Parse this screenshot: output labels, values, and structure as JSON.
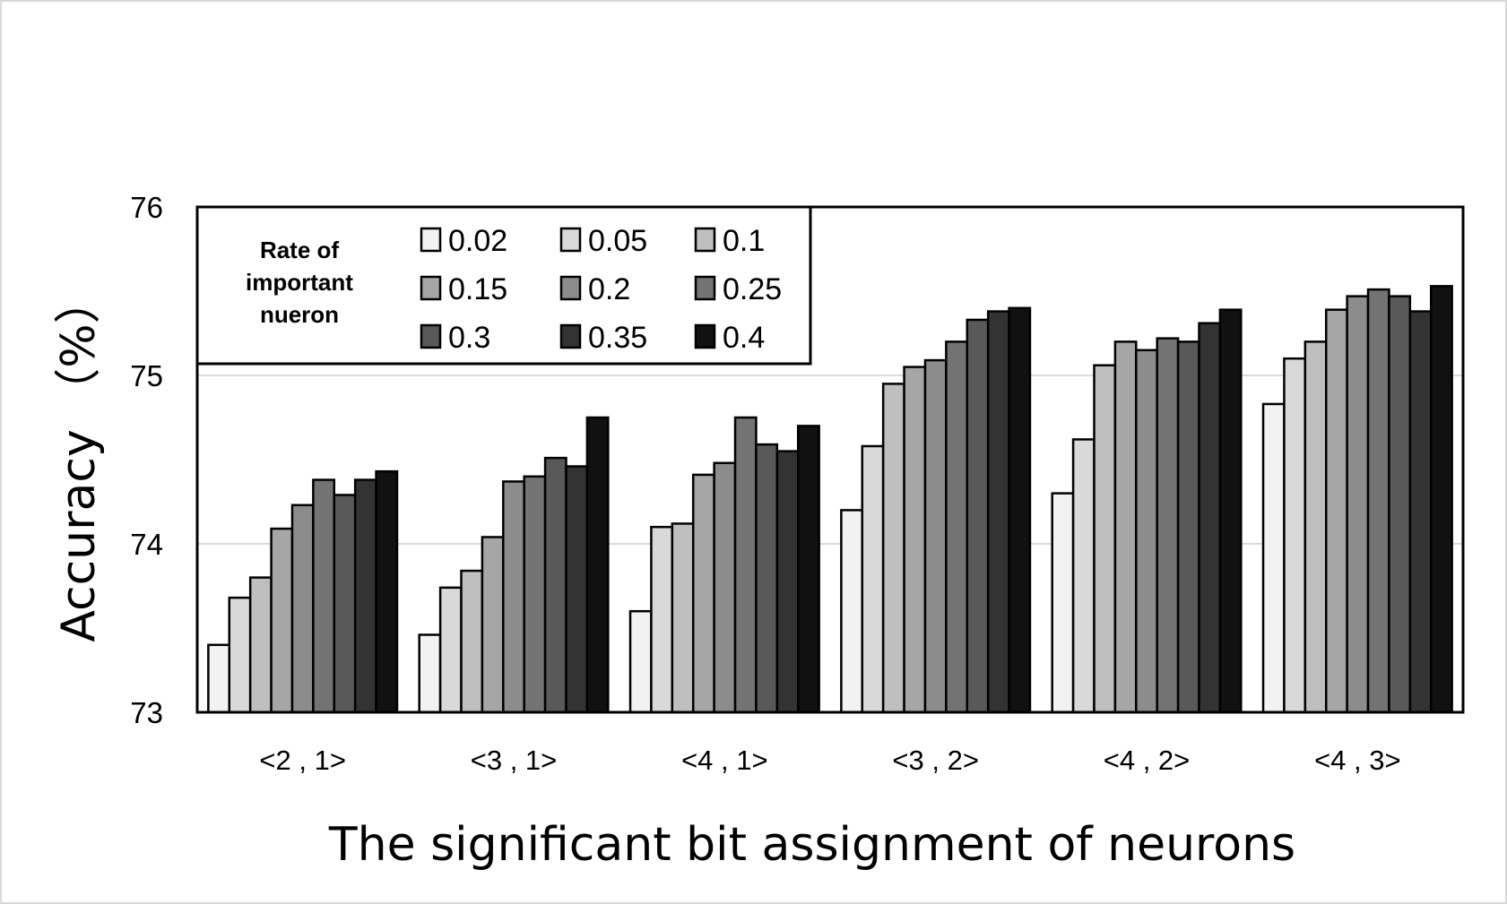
{
  "chart_data": {
    "type": "bar",
    "xlabel": "The significant bit  assignment of neurons",
    "ylabel": "Accuracy （%）",
    "ylim": [
      73,
      76
    ],
    "yticks": [
      "73",
      "74",
      "75",
      "76"
    ],
    "grid": true,
    "legend_position": "top-left",
    "legend_title_lines": [
      "Rate of",
      "important",
      "nueron"
    ],
    "categories": [
      "<2 , 1>",
      "<3 , 1>",
      "<4 , 1>",
      "<3 , 2>",
      "<4 , 2>",
      "<4 , 3>"
    ],
    "series": [
      {
        "name": "0.02",
        "color": "#f2f2f2",
        "values": [
          73.4,
          73.46,
          73.6,
          74.2,
          74.3,
          74.83
        ]
      },
      {
        "name": "0.05",
        "color": "#d9d9d9",
        "values": [
          73.68,
          73.74,
          74.1,
          74.58,
          74.62,
          75.1
        ]
      },
      {
        "name": "0.1",
        "color": "#bfbfbf",
        "values": [
          73.8,
          73.84,
          74.12,
          74.95,
          75.06,
          75.2
        ]
      },
      {
        "name": "0.15",
        "color": "#a6a6a6",
        "values": [
          74.09,
          74.04,
          74.41,
          75.05,
          75.2,
          75.39
        ]
      },
      {
        "name": "0.2",
        "color": "#8c8c8c",
        "values": [
          74.23,
          74.37,
          74.48,
          75.09,
          75.15,
          75.47
        ]
      },
      {
        "name": "0.25",
        "color": "#737373",
        "values": [
          74.38,
          74.4,
          74.75,
          75.2,
          75.22,
          75.51
        ]
      },
      {
        "name": "0.3",
        "color": "#595959",
        "values": [
          74.29,
          74.51,
          74.59,
          75.33,
          75.2,
          75.47
        ]
      },
      {
        "name": "0.35",
        "color": "#333333",
        "values": [
          74.38,
          74.46,
          74.55,
          75.38,
          75.31,
          75.38
        ]
      },
      {
        "name": "0.4",
        "color": "#111111",
        "values": [
          74.43,
          74.75,
          74.7,
          75.4,
          75.39,
          75.53
        ]
      }
    ]
  }
}
